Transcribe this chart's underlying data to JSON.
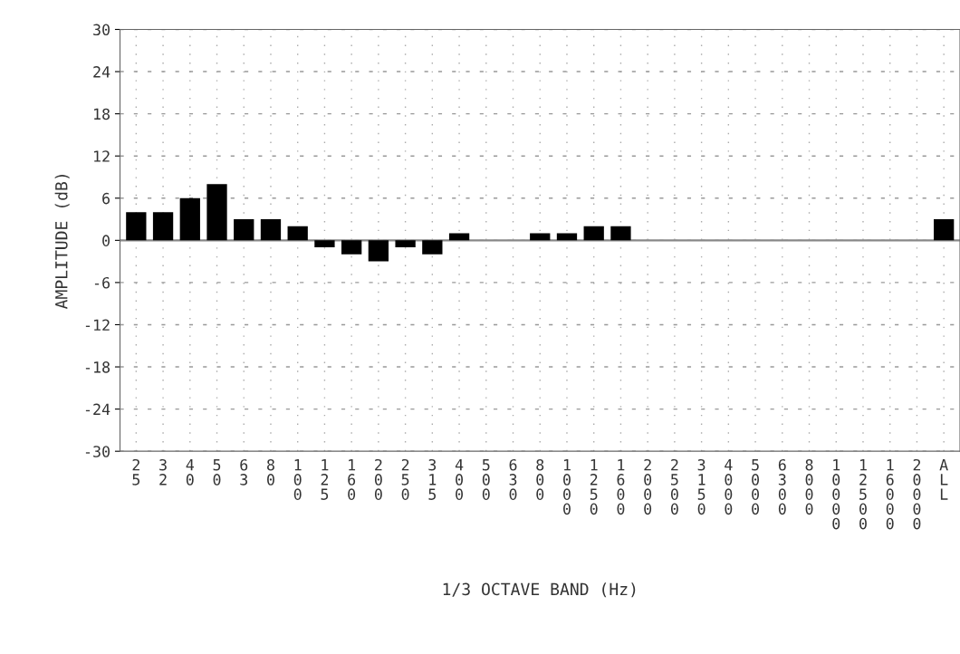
{
  "chart_data": {
    "type": "bar",
    "xlabel": "1/3 OCTAVE BAND (Hz)",
    "ylabel": "AMPLITUDE (dB)",
    "categories": [
      "25",
      "32",
      "40",
      "50",
      "63",
      "80",
      "100",
      "125",
      "160",
      "200",
      "250",
      "315",
      "400",
      "500",
      "630",
      "800",
      "1000",
      "1250",
      "1600",
      "2000",
      "2500",
      "3150",
      "4000",
      "5000",
      "6300",
      "8000",
      "10000",
      "12500",
      "16000",
      "20000",
      "ALL"
    ],
    "values": [
      4,
      4,
      6,
      8,
      3,
      3,
      2,
      -1,
      -2,
      -3,
      -1,
      -2,
      1,
      0,
      0,
      1,
      1,
      2,
      2,
      0,
      0,
      0,
      0,
      0,
      0,
      0,
      0,
      0,
      0,
      0,
      3
    ],
    "color": "#000000",
    "ylim": [
      -30,
      30
    ],
    "yticks": [
      -30,
      -24,
      -18,
      -12,
      -6,
      0,
      6,
      12,
      18,
      24,
      30
    ],
    "grid": true,
    "ref_lines": [
      {
        "axis": "y",
        "value": 0,
        "color": "#888888",
        "line_style": "solid"
      }
    ]
  }
}
